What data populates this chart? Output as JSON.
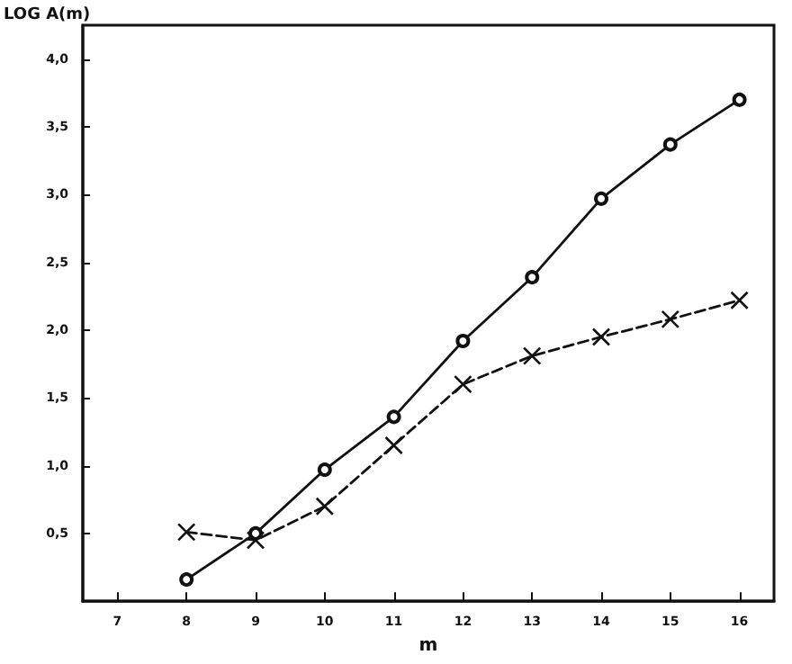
{
  "chart_data": {
    "type": "line",
    "xlabel": "m",
    "ylabel": "LOG A(m)",
    "x": [
      8,
      9,
      10,
      11,
      12,
      13,
      14,
      15,
      16
    ],
    "series": [
      {
        "color": "#111111",
        "marker": "circle",
        "line_style": "solid",
        "values": [
          0.16,
          0.5,
          0.97,
          1.36,
          1.92,
          2.39,
          2.97,
          3.37,
          3.7
        ]
      },
      {
        "color": "#111111",
        "marker": "cross",
        "line_style": "dashed",
        "values": [
          0.51,
          0.45,
          0.7,
          1.15,
          1.6,
          1.81,
          1.95,
          2.08,
          2.22
        ]
      }
    ],
    "xlim": [
      6.5,
      16.5
    ],
    "xticks": [
      7,
      8,
      9,
      10,
      11,
      12,
      13,
      14,
      15,
      16
    ],
    "ylim": [
      0,
      4.25
    ],
    "yticks": [
      {
        "value": 0.5,
        "label": "0,5"
      },
      {
        "value": 1,
        "label": "1,0"
      },
      {
        "value": 1.5,
        "label": "1,5"
      },
      {
        "value": 2,
        "label": "2,0"
      },
      {
        "value": 2.5,
        "label": "2,5"
      },
      {
        "value": 3,
        "label": "3,0"
      },
      {
        "value": 3.5,
        "label": "3,5"
      },
      {
        "value": 4,
        "label": "4,0"
      }
    ],
    "grid": false
  }
}
